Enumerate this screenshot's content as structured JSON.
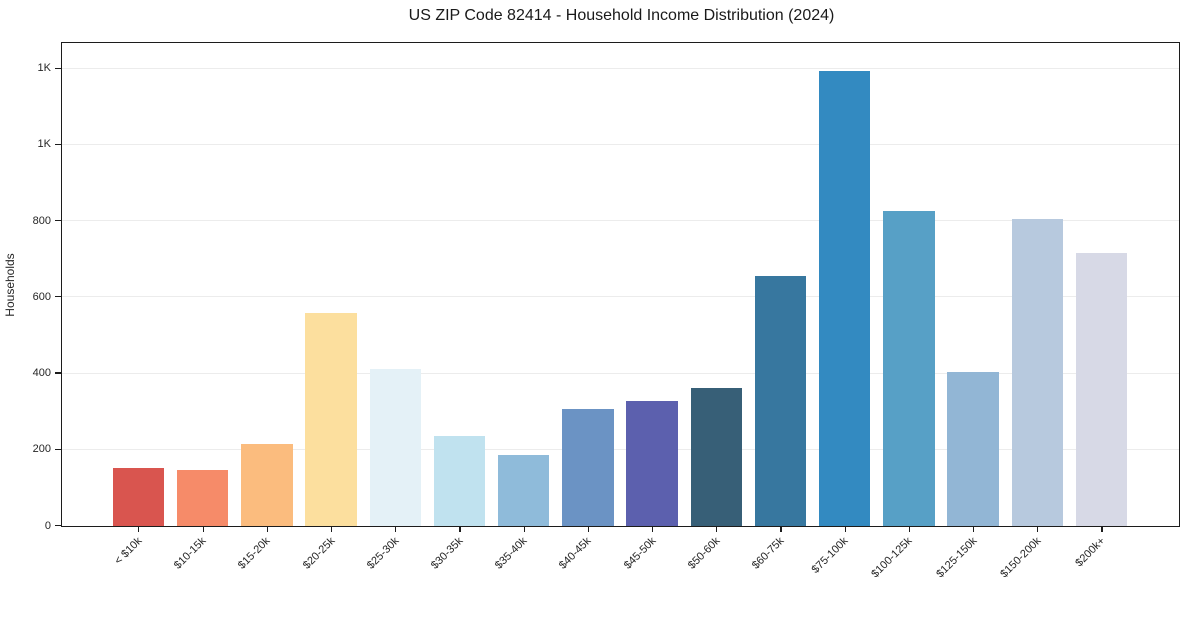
{
  "figure": {
    "title": "US ZIP Code 82414 - Household Income Distribution (2024)",
    "ylabel": "Households"
  },
  "chart_data": {
    "type": "bar",
    "title": "US ZIP Code 82414 - Household Income Distribution (2024)",
    "xlabel": "",
    "ylabel": "Households",
    "legend": "none",
    "grid": "horizontal-only",
    "background": "#ffffff",
    "spine_color": "#1c1c1c",
    "gridline_color": "#ececec",
    "categories": [
      "< $10k",
      "$10-15k",
      "$15-20k",
      "$20-25k",
      "$25-30k",
      "$30-35k",
      "$35-40k",
      "$40-45k",
      "$45-50k",
      "$50-60k",
      "$60-75k",
      "$75-100k",
      "$100-125k",
      "$125-150k",
      "$150-200k",
      "$200k+"
    ],
    "values": [
      151,
      146,
      215,
      558,
      413,
      236,
      186,
      307,
      327,
      363,
      656,
      1195,
      826,
      404,
      806,
      716
    ],
    "bar_colors": [
      "#d9554f",
      "#f68b69",
      "#fbbc7e",
      "#fcdf9e",
      "#e4f1f7",
      "#c0e2ef",
      "#8fbbda",
      "#6b93c4",
      "#5c60ae",
      "#375f77",
      "#37779f",
      "#338ac1",
      "#57a0c6",
      "#92b6d5",
      "#b7c9de",
      "#d7d9e6"
    ],
    "ylim": [
      0,
      1265
    ],
    "yticks": {
      "values": [
        0,
        200,
        400,
        600,
        800,
        1000,
        1200
      ],
      "labels": [
        "0",
        "200",
        "400",
        "600",
        "800",
        "1K",
        "1K"
      ]
    }
  }
}
